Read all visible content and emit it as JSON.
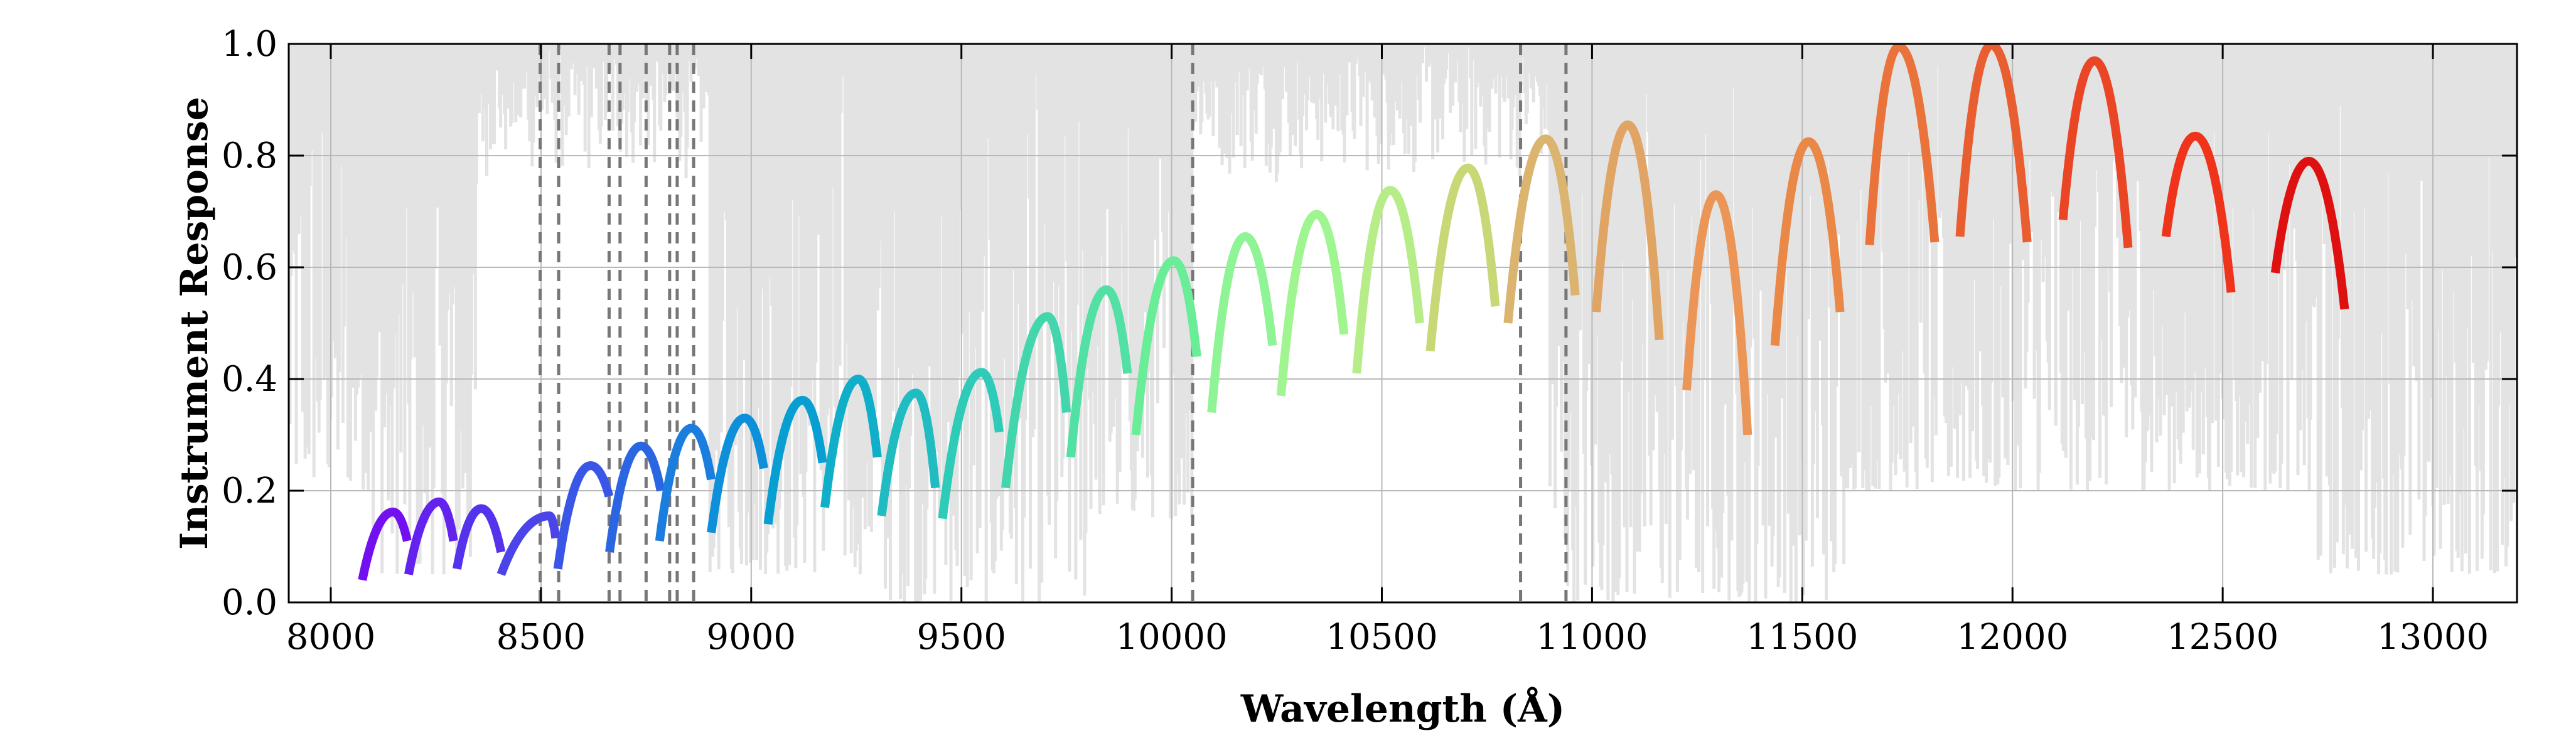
{
  "chart_data": {
    "type": "line",
    "xlabel": "Wavelength (Å)",
    "ylabel": "Instrument Response",
    "xlim": [
      7900,
      13200
    ],
    "ylim": [
      0.0,
      1.0
    ],
    "x_ticks": [
      8000,
      8500,
      9000,
      9500,
      10000,
      10500,
      11000,
      11500,
      12000,
      12500,
      13000
    ],
    "y_ticks": [
      0.0,
      0.2,
      0.4,
      0.6,
      0.8,
      1.0
    ],
    "x_tick_labels": [
      "8000",
      "8500",
      "9000",
      "9500",
      "10000",
      "10500",
      "11000",
      "11500",
      "12000",
      "12500",
      "13000"
    ],
    "y_tick_labels": [
      "0.0",
      "0.2",
      "0.4",
      "0.6",
      "0.8",
      "1.0"
    ],
    "grid": true,
    "telluric_color": "#e3e3e3",
    "vline_color": "#777777",
    "vlines": [
      8498,
      8542,
      8662,
      8688,
      8750,
      8806,
      8824,
      8863,
      10050,
      10830,
      10938
    ],
    "telluric_regions": [
      {
        "start": 7900,
        "end": 8100,
        "min": 0.2
      },
      {
        "start": 8100,
        "end": 8350,
        "min": 0.05
      },
      {
        "start": 8900,
        "end": 9300,
        "min": 0.05
      },
      {
        "start": 9300,
        "end": 9800,
        "min": 0.0
      },
      {
        "start": 9800,
        "end": 10050,
        "min": 0.15
      },
      {
        "start": 10900,
        "end": 11600,
        "min": 0.0
      },
      {
        "start": 11600,
        "end": 12700,
        "min": 0.2
      },
      {
        "start": 12700,
        "end": 13200,
        "min": 0.05
      }
    ],
    "orders": [
      {
        "start": 8075,
        "peak": 8148,
        "end": 8182,
        "y_start": 0.04,
        "y_peak": 0.162,
        "y_end": 0.11,
        "color": "#7310f0"
      },
      {
        "start": 8185,
        "peak": 8258,
        "end": 8292,
        "y_start": 0.05,
        "y_peak": 0.18,
        "y_end": 0.11,
        "color": "#6422ee"
      },
      {
        "start": 8300,
        "peak": 8358,
        "end": 8405,
        "y_start": 0.06,
        "y_peak": 0.168,
        "y_end": 0.09,
        "color": "#5533ec"
      },
      {
        "start": 8405,
        "peak": 8520,
        "end": 8535,
        "y_start": 0.05,
        "y_peak": 0.155,
        "y_end": 0.115,
        "color": "#4b44e9"
      },
      {
        "start": 8540,
        "peak": 8618,
        "end": 8662,
        "y_start": 0.06,
        "y_peak": 0.245,
        "y_end": 0.19,
        "color": "#3a56e6"
      },
      {
        "start": 8663,
        "peak": 8738,
        "end": 8785,
        "y_start": 0.09,
        "y_peak": 0.28,
        "y_end": 0.2,
        "color": "#2b66e2"
      },
      {
        "start": 8782,
        "peak": 8858,
        "end": 8905,
        "y_start": 0.11,
        "y_peak": 0.312,
        "y_end": 0.22,
        "color": "#1b7ede"
      },
      {
        "start": 8905,
        "peak": 8985,
        "end": 9030,
        "y_start": 0.125,
        "y_peak": 0.33,
        "y_end": 0.24,
        "color": "#0d8fd9"
      },
      {
        "start": 9040,
        "peak": 9122,
        "end": 9170,
        "y_start": 0.14,
        "y_peak": 0.362,
        "y_end": 0.25,
        "color": "#079ed2"
      },
      {
        "start": 9175,
        "peak": 9255,
        "end": 9300,
        "y_start": 0.17,
        "y_peak": 0.4,
        "y_end": 0.26,
        "color": "#10afc9"
      },
      {
        "start": 9310,
        "peak": 9392,
        "end": 9438,
        "y_start": 0.155,
        "y_peak": 0.375,
        "y_end": 0.205,
        "color": "#20bcc1"
      },
      {
        "start": 9455,
        "peak": 9548,
        "end": 9590,
        "y_start": 0.15,
        "y_peak": 0.412,
        "y_end": 0.305,
        "color": "#2fcbb9"
      },
      {
        "start": 9605,
        "peak": 9705,
        "end": 9750,
        "y_start": 0.205,
        "y_peak": 0.512,
        "y_end": 0.34,
        "color": "#43d6ad"
      },
      {
        "start": 9760,
        "peak": 9845,
        "end": 9895,
        "y_start": 0.26,
        "y_peak": 0.56,
        "y_end": 0.41,
        "color": "#52e0a4"
      },
      {
        "start": 9915,
        "peak": 10005,
        "end": 10060,
        "y_start": 0.3,
        "y_peak": 0.612,
        "y_end": 0.44,
        "color": "#69ed97"
      },
      {
        "start": 10095,
        "peak": 10175,
        "end": 10240,
        "y_start": 0.34,
        "y_peak": 0.655,
        "y_end": 0.46,
        "color": "#8ff495"
      },
      {
        "start": 10260,
        "peak": 10345,
        "end": 10410,
        "y_start": 0.37,
        "y_peak": 0.695,
        "y_end": 0.48,
        "color": "#9ff690"
      },
      {
        "start": 10440,
        "peak": 10520,
        "end": 10590,
        "y_start": 0.41,
        "y_peak": 0.738,
        "y_end": 0.5,
        "color": "#b7ed88"
      },
      {
        "start": 10615,
        "peak": 10705,
        "end": 10770,
        "y_start": 0.45,
        "y_peak": 0.778,
        "y_end": 0.53,
        "color": "#c8d877"
      },
      {
        "start": 10800,
        "peak": 10890,
        "end": 10960,
        "y_start": 0.5,
        "y_peak": 0.83,
        "y_end": 0.55,
        "color": "#dbb46f"
      },
      {
        "start": 11010,
        "peak": 11085,
        "end": 11160,
        "y_start": 0.52,
        "y_peak": 0.855,
        "y_end": 0.47,
        "color": "#e0a464"
      },
      {
        "start": 11225,
        "peak": 11295,
        "end": 11370,
        "y_start": 0.38,
        "y_peak": 0.73,
        "y_end": 0.3,
        "color": "#eb9656"
      },
      {
        "start": 11435,
        "peak": 11515,
        "end": 11590,
        "y_start": 0.46,
        "y_peak": 0.825,
        "y_end": 0.52,
        "color": "#ea8847"
      },
      {
        "start": 11660,
        "peak": 11730,
        "end": 11815,
        "y_start": 0.64,
        "y_peak": 0.995,
        "y_end": 0.645,
        "color": "#ea733b"
      },
      {
        "start": 11875,
        "peak": 11950,
        "end": 12035,
        "y_start": 0.655,
        "y_peak": 0.998,
        "y_end": 0.645,
        "color": "#e95e30"
      },
      {
        "start": 12120,
        "peak": 12195,
        "end": 12275,
        "y_start": 0.685,
        "y_peak": 0.97,
        "y_end": 0.635,
        "color": "#ea4626"
      },
      {
        "start": 12365,
        "peak": 12435,
        "end": 12520,
        "y_start": 0.655,
        "y_peak": 0.835,
        "y_end": 0.555,
        "color": "#f0341c"
      },
      {
        "start": 12625,
        "peak": 12705,
        "end": 12790,
        "y_start": 0.59,
        "y_peak": 0.79,
        "y_end": 0.525,
        "color": "#df1010"
      }
    ]
  }
}
